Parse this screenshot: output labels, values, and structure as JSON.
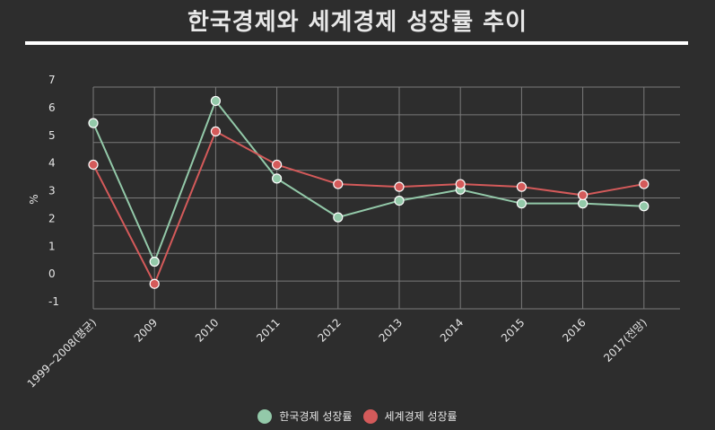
{
  "title": "한국경제와 세계경제 성장률 추이",
  "chart_data": {
    "type": "line",
    "title": "한국경제와 세계경제 성장률 추이",
    "xlabel": "",
    "ylabel": "%",
    "ylim": [
      -1,
      7
    ],
    "yticks": [
      "7",
      "6",
      "5",
      "4",
      "3",
      "2",
      "1",
      "0",
      "-1"
    ],
    "categories": [
      "1999~2008(평균)",
      "2009",
      "2010",
      "2011",
      "2012",
      "2013",
      "2014",
      "2015",
      "2016",
      "2017(전망)"
    ],
    "grid": true,
    "legend_position": "bottom",
    "series": [
      {
        "name": "한국경제 성장률",
        "color": "#93c9a9",
        "values": [
          5.7,
          0.7,
          6.5,
          3.7,
          2.3,
          2.9,
          3.3,
          2.8,
          2.8,
          2.7
        ]
      },
      {
        "name": "세계경제 성장률",
        "color": "#d45a5a",
        "values": [
          4.2,
          -0.1,
          5.4,
          4.2,
          3.5,
          3.4,
          3.5,
          3.4,
          3.1,
          3.5
        ]
      }
    ]
  }
}
